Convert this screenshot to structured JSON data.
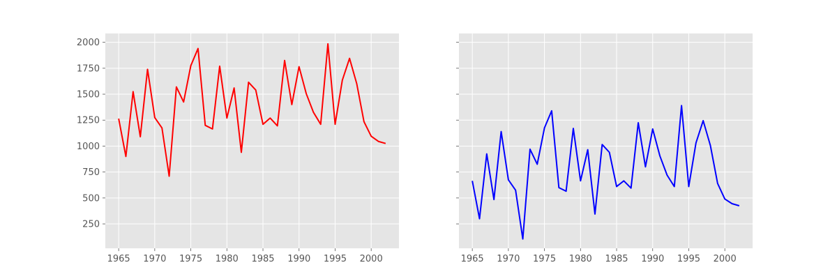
{
  "chart_data": [
    {
      "type": "line",
      "title": "",
      "xlabel": "",
      "ylabel": "",
      "xlim": [
        1963.15,
        2003.85
      ],
      "ylim": [
        15,
        2085
      ],
      "grid": true,
      "x_ticks": [
        1965,
        1970,
        1975,
        1980,
        1985,
        1990,
        1995,
        2000
      ],
      "y_ticks": [
        250,
        500,
        750,
        1000,
        1250,
        1500,
        1750,
        2000
      ],
      "y_tick_labels": [
        "250",
        "500",
        "750",
        "1000",
        "1250",
        "1500",
        "1750",
        "2000"
      ],
      "show_y_tick_labels": true,
      "series": [
        {
          "color": "#ff0000",
          "x": [
            1965,
            1966,
            1967,
            1968,
            1969,
            1970,
            1971,
            1972,
            1973,
            1974,
            1975,
            1976,
            1977,
            1978,
            1979,
            1980,
            1981,
            1982,
            1983,
            1984,
            1985,
            1986,
            1987,
            1988,
            1989,
            1990,
            1991,
            1992,
            1993,
            1994,
            1995,
            1996,
            1997,
            1998,
            1999,
            2000,
            2001,
            2002
          ],
          "values": [
            1265,
            900,
            1525,
            1090,
            1740,
            1275,
            1175,
            710,
            1570,
            1425,
            1775,
            1940,
            1200,
            1165,
            1770,
            1270,
            1560,
            940,
            1615,
            1540,
            1210,
            1270,
            1195,
            1825,
            1400,
            1765,
            1505,
            1325,
            1210,
            1985,
            1210,
            1635,
            1845,
            1600,
            1235,
            1095,
            1045,
            1025
          ]
        }
      ]
    },
    {
      "type": "line",
      "title": "",
      "xlabel": "",
      "ylabel": "",
      "xlim": [
        1963.15,
        2003.85
      ],
      "ylim": [
        15,
        2085
      ],
      "grid": true,
      "x_ticks": [
        1965,
        1970,
        1975,
        1980,
        1985,
        1990,
        1995,
        2000
      ],
      "y_ticks": [
        250,
        500,
        750,
        1000,
        1250,
        1500,
        1750,
        2000
      ],
      "show_y_tick_labels": false,
      "series": [
        {
          "color": "#0000ff",
          "x": [
            1965,
            1966,
            1967,
            1968,
            1969,
            1970,
            1971,
            1972,
            1973,
            1974,
            1975,
            1976,
            1977,
            1978,
            1979,
            1980,
            1981,
            1982,
            1983,
            1984,
            1985,
            1986,
            1987,
            1988,
            1989,
            1990,
            1991,
            1992,
            1993,
            1994,
            1995,
            1996,
            1997,
            1998,
            1999,
            2000,
            2001,
            2002
          ],
          "values": [
            665,
            300,
            925,
            485,
            1140,
            675,
            575,
            105,
            970,
            825,
            1175,
            1340,
            600,
            565,
            1170,
            665,
            965,
            345,
            1015,
            940,
            610,
            665,
            595,
            1225,
            800,
            1165,
            905,
            720,
            610,
            1390,
            610,
            1030,
            1245,
            1005,
            640,
            490,
            445,
            425
          ]
        }
      ]
    }
  ]
}
